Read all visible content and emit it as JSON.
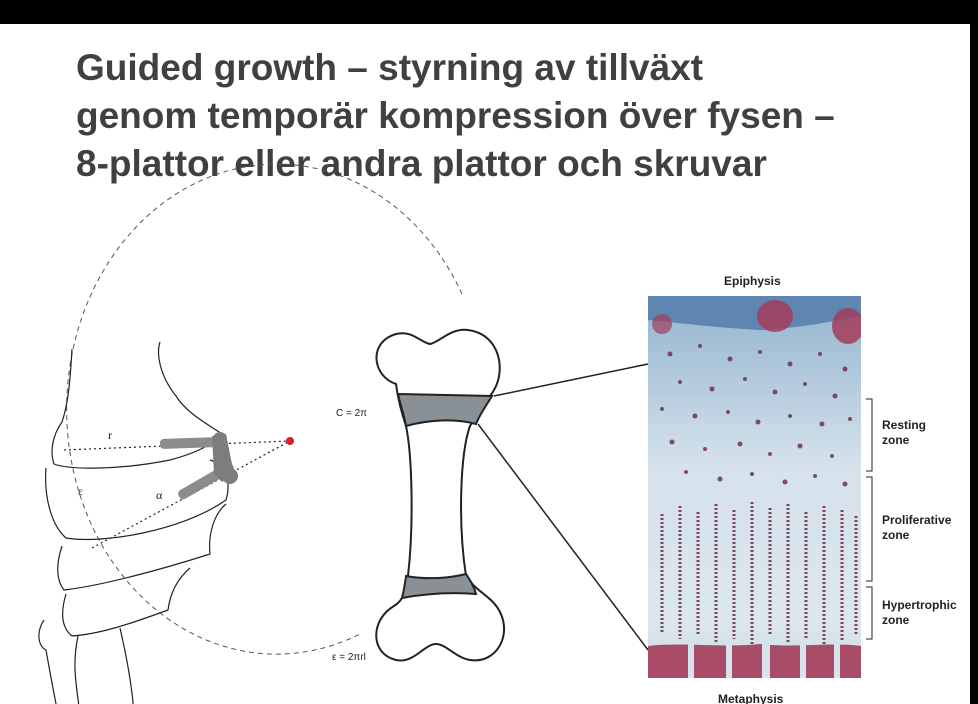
{
  "slide": {
    "title_lines": [
      "Guided growth – styrning av tillväxt",
      "genom temporär kompression över fysen –",
      "8-plattor eller andra plattor och skruvar"
    ]
  },
  "knee_diagram": {
    "label_r": "r",
    "label_epsilon": "ε",
    "label_alpha": "α",
    "formula_circumference": "C = 2π",
    "formula_epsilon": "ε = 2πrl"
  },
  "histology": {
    "top_label": "Epiphysis",
    "bottom_label": "Metaphysis",
    "zones": [
      {
        "line1": "Resting",
        "line2": "zone"
      },
      {
        "line1": "Proliferative",
        "line2": "zone"
      },
      {
        "line1": "Hypertrophic",
        "line2": "zone"
      }
    ]
  },
  "colors": {
    "title": "#404040",
    "physis_band": "#8a9196",
    "plate": "#8c8c8c",
    "rotation_point": "#e02020",
    "cartilage": "#c9dbe8",
    "stain": "#a33c5a"
  }
}
